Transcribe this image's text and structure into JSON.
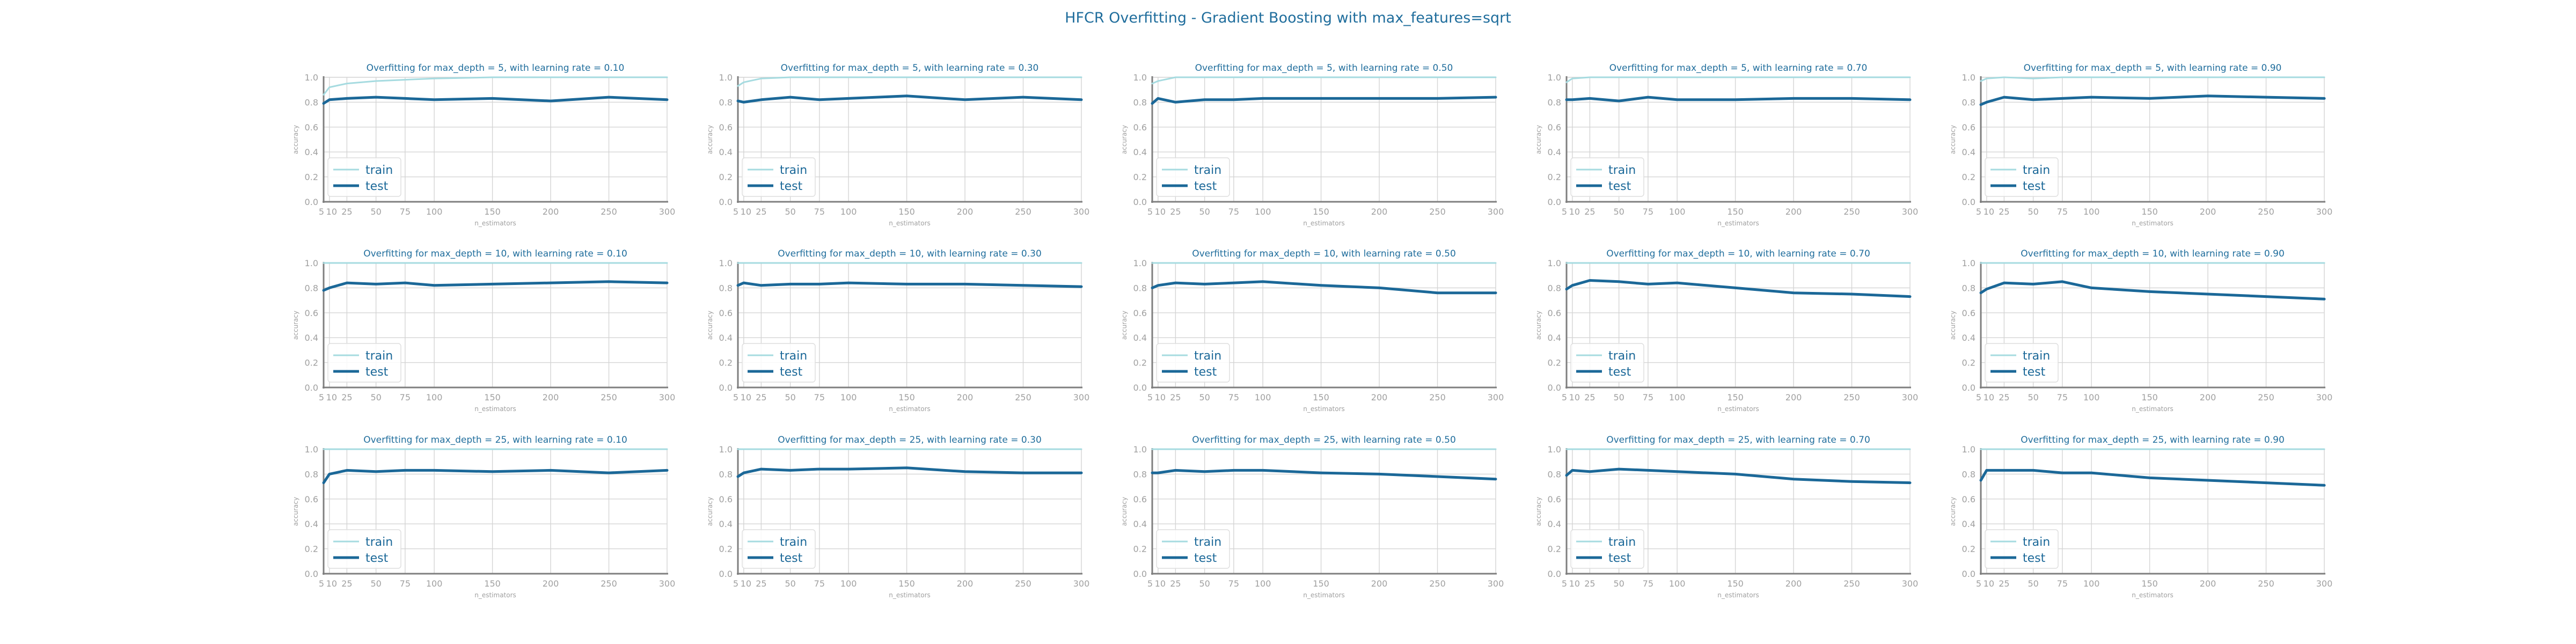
{
  "suptitle": "HFCR Overfitting - Gradient Boosting with max_features=sqrt",
  "colors": {
    "train": "#a6dbe0",
    "test": "#1b6898",
    "title_text": "#1f6d9c",
    "axis_text": "#a0a0a0",
    "grid": "#d4d4d4",
    "axis_line": "#7f7f7f"
  },
  "chart_data": [
    {
      "type": "line",
      "title": "Overfitting for max_depth = 5, with learning rate = 0.10",
      "xlabel": "n_estimators",
      "ylabel": "accuracy",
      "x": [
        5,
        10,
        25,
        50,
        75,
        100,
        150,
        200,
        250,
        300
      ],
      "xticks": [
        "5",
        "10",
        "25",
        "50",
        "75",
        "100",
        "150",
        "200",
        "250",
        "300"
      ],
      "yticks": [
        "0.0",
        "0.2",
        "0.4",
        "0.6",
        "0.8",
        "1.0"
      ],
      "ylim": [
        0,
        1
      ],
      "xlim": [
        5,
        300
      ],
      "grid": true,
      "legend_position": "lower-left",
      "series": [
        {
          "name": "train",
          "values": [
            0.86,
            0.92,
            0.95,
            0.97,
            0.98,
            0.99,
            1.0,
            1.0,
            1.0,
            1.0
          ]
        },
        {
          "name": "test",
          "values": [
            0.79,
            0.82,
            0.83,
            0.84,
            0.83,
            0.82,
            0.83,
            0.81,
            0.84,
            0.82
          ]
        }
      ]
    },
    {
      "type": "line",
      "title": "Overfitting for max_depth = 5, with learning rate = 0.30",
      "xlabel": "n_estimators",
      "ylabel": "accuracy",
      "x": [
        5,
        10,
        25,
        50,
        75,
        100,
        150,
        200,
        250,
        300
      ],
      "xticks": [
        "5",
        "10",
        "25",
        "50",
        "75",
        "100",
        "150",
        "200",
        "250",
        "300"
      ],
      "yticks": [
        "0.0",
        "0.2",
        "0.4",
        "0.6",
        "0.8",
        "1.0"
      ],
      "ylim": [
        0,
        1
      ],
      "xlim": [
        5,
        300
      ],
      "grid": true,
      "legend_position": "lower-left",
      "series": [
        {
          "name": "train",
          "values": [
            0.93,
            0.96,
            0.99,
            1.0,
            1.0,
            1.0,
            1.0,
            1.0,
            1.0,
            1.0
          ]
        },
        {
          "name": "test",
          "values": [
            0.81,
            0.8,
            0.82,
            0.84,
            0.82,
            0.83,
            0.85,
            0.82,
            0.84,
            0.82
          ]
        }
      ]
    },
    {
      "type": "line",
      "title": "Overfitting for max_depth = 5, with learning rate = 0.50",
      "xlabel": "n_estimators",
      "ylabel": "accuracy",
      "x": [
        5,
        10,
        25,
        50,
        75,
        100,
        150,
        200,
        250,
        300
      ],
      "xticks": [
        "5",
        "10",
        "25",
        "50",
        "75",
        "100",
        "150",
        "200",
        "250",
        "300"
      ],
      "yticks": [
        "0.0",
        "0.2",
        "0.4",
        "0.6",
        "0.8",
        "1.0"
      ],
      "ylim": [
        0,
        1
      ],
      "xlim": [
        5,
        300
      ],
      "grid": true,
      "legend_position": "lower-left",
      "series": [
        {
          "name": "train",
          "values": [
            0.95,
            0.97,
            1.0,
            1.0,
            1.0,
            1.0,
            1.0,
            1.0,
            1.0,
            1.0
          ]
        },
        {
          "name": "test",
          "values": [
            0.79,
            0.83,
            0.8,
            0.82,
            0.82,
            0.83,
            0.83,
            0.83,
            0.83,
            0.84
          ]
        }
      ]
    },
    {
      "type": "line",
      "title": "Overfitting for max_depth = 5, with learning rate = 0.70",
      "xlabel": "n_estimators",
      "ylabel": "accuracy",
      "x": [
        5,
        10,
        25,
        50,
        75,
        100,
        150,
        200,
        250,
        300
      ],
      "xticks": [
        "5",
        "10",
        "25",
        "50",
        "75",
        "100",
        "150",
        "200",
        "250",
        "300"
      ],
      "yticks": [
        "0.0",
        "0.2",
        "0.4",
        "0.6",
        "0.8",
        "1.0"
      ],
      "ylim": [
        0,
        1
      ],
      "xlim": [
        5,
        300
      ],
      "grid": true,
      "legend_position": "lower-left",
      "series": [
        {
          "name": "train",
          "values": [
            0.96,
            0.99,
            1.0,
            1.0,
            1.0,
            1.0,
            1.0,
            1.0,
            1.0,
            1.0
          ]
        },
        {
          "name": "test",
          "values": [
            0.82,
            0.82,
            0.83,
            0.81,
            0.84,
            0.82,
            0.82,
            0.83,
            0.83,
            0.82
          ]
        }
      ]
    },
    {
      "type": "line",
      "title": "Overfitting for max_depth = 5, with learning rate = 0.90",
      "xlabel": "n_estimators",
      "ylabel": "accuracy",
      "x": [
        5,
        10,
        25,
        50,
        75,
        100,
        150,
        200,
        250,
        300
      ],
      "xticks": [
        "5",
        "10",
        "25",
        "50",
        "75",
        "100",
        "150",
        "200",
        "250",
        "300"
      ],
      "yticks": [
        "0.0",
        "0.2",
        "0.4",
        "0.6",
        "0.8",
        "1.0"
      ],
      "ylim": [
        0,
        1
      ],
      "xlim": [
        5,
        300
      ],
      "grid": true,
      "legend_position": "lower-left",
      "series": [
        {
          "name": "train",
          "values": [
            0.97,
            0.99,
            1.0,
            0.99,
            1.0,
            1.0,
            1.0,
            1.0,
            1.0,
            1.0
          ]
        },
        {
          "name": "test",
          "values": [
            0.78,
            0.8,
            0.84,
            0.82,
            0.83,
            0.84,
            0.83,
            0.85,
            0.84,
            0.83
          ]
        }
      ]
    },
    {
      "type": "line",
      "title": "Overfitting for max_depth = 10, with learning rate = 0.10",
      "xlabel": "n_estimators",
      "ylabel": "accuracy",
      "x": [
        5,
        10,
        25,
        50,
        75,
        100,
        150,
        200,
        250,
        300
      ],
      "xticks": [
        "5",
        "10",
        "25",
        "50",
        "75",
        "100",
        "150",
        "200",
        "250",
        "300"
      ],
      "yticks": [
        "0.0",
        "0.2",
        "0.4",
        "0.6",
        "0.8",
        "1.0"
      ],
      "ylim": [
        0,
        1
      ],
      "xlim": [
        5,
        300
      ],
      "grid": true,
      "legend_position": "lower-left",
      "series": [
        {
          "name": "train",
          "values": [
            1.0,
            1.0,
            1.0,
            1.0,
            1.0,
            1.0,
            1.0,
            1.0,
            1.0,
            1.0
          ]
        },
        {
          "name": "test",
          "values": [
            0.78,
            0.8,
            0.84,
            0.83,
            0.84,
            0.82,
            0.83,
            0.84,
            0.85,
            0.84
          ]
        }
      ]
    },
    {
      "type": "line",
      "title": "Overfitting for max_depth = 10, with learning rate = 0.30",
      "xlabel": "n_estimators",
      "ylabel": "accuracy",
      "x": [
        5,
        10,
        25,
        50,
        75,
        100,
        150,
        200,
        250,
        300
      ],
      "xticks": [
        "5",
        "10",
        "25",
        "50",
        "75",
        "100",
        "150",
        "200",
        "250",
        "300"
      ],
      "yticks": [
        "0.0",
        "0.2",
        "0.4",
        "0.6",
        "0.8",
        "1.0"
      ],
      "ylim": [
        0,
        1
      ],
      "xlim": [
        5,
        300
      ],
      "grid": true,
      "legend_position": "lower-left",
      "series": [
        {
          "name": "train",
          "values": [
            1.0,
            1.0,
            1.0,
            1.0,
            1.0,
            1.0,
            1.0,
            1.0,
            1.0,
            1.0
          ]
        },
        {
          "name": "test",
          "values": [
            0.82,
            0.84,
            0.82,
            0.83,
            0.83,
            0.84,
            0.83,
            0.83,
            0.82,
            0.81
          ]
        }
      ]
    },
    {
      "type": "line",
      "title": "Overfitting for max_depth = 10, with learning rate = 0.50",
      "xlabel": "n_estimators",
      "ylabel": "accuracy",
      "x": [
        5,
        10,
        25,
        50,
        75,
        100,
        150,
        200,
        250,
        300
      ],
      "xticks": [
        "5",
        "10",
        "25",
        "50",
        "75",
        "100",
        "150",
        "200",
        "250",
        "300"
      ],
      "yticks": [
        "0.0",
        "0.2",
        "0.4",
        "0.6",
        "0.8",
        "1.0"
      ],
      "ylim": [
        0,
        1
      ],
      "xlim": [
        5,
        300
      ],
      "grid": true,
      "legend_position": "lower-left",
      "series": [
        {
          "name": "train",
          "values": [
            1.0,
            1.0,
            1.0,
            1.0,
            1.0,
            1.0,
            1.0,
            1.0,
            1.0,
            1.0
          ]
        },
        {
          "name": "test",
          "values": [
            0.8,
            0.82,
            0.84,
            0.83,
            0.84,
            0.85,
            0.82,
            0.8,
            0.76,
            0.76
          ]
        }
      ]
    },
    {
      "type": "line",
      "title": "Overfitting for max_depth = 10, with learning rate = 0.70",
      "xlabel": "n_estimators",
      "ylabel": "accuracy",
      "x": [
        5,
        10,
        25,
        50,
        75,
        100,
        150,
        200,
        250,
        300
      ],
      "xticks": [
        "5",
        "10",
        "25",
        "50",
        "75",
        "100",
        "150",
        "200",
        "250",
        "300"
      ],
      "yticks": [
        "0.0",
        "0.2",
        "0.4",
        "0.6",
        "0.8",
        "1.0"
      ],
      "ylim": [
        0,
        1
      ],
      "xlim": [
        5,
        300
      ],
      "grid": true,
      "legend_position": "lower-left",
      "series": [
        {
          "name": "train",
          "values": [
            1.0,
            1.0,
            1.0,
            1.0,
            1.0,
            1.0,
            1.0,
            1.0,
            1.0,
            1.0
          ]
        },
        {
          "name": "test",
          "values": [
            0.79,
            0.82,
            0.86,
            0.85,
            0.83,
            0.84,
            0.8,
            0.76,
            0.75,
            0.73
          ]
        }
      ]
    },
    {
      "type": "line",
      "title": "Overfitting for max_depth = 10, with learning rate = 0.90",
      "xlabel": "n_estimators",
      "ylabel": "accuracy",
      "x": [
        5,
        10,
        25,
        50,
        75,
        100,
        150,
        200,
        250,
        300
      ],
      "xticks": [
        "5",
        "10",
        "25",
        "50",
        "75",
        "100",
        "150",
        "200",
        "250",
        "300"
      ],
      "yticks": [
        "0.0",
        "0.2",
        "0.4",
        "0.6",
        "0.8",
        "1.0"
      ],
      "ylim": [
        0,
        1
      ],
      "xlim": [
        5,
        300
      ],
      "grid": true,
      "legend_position": "lower-left",
      "series": [
        {
          "name": "train",
          "values": [
            1.0,
            1.0,
            1.0,
            1.0,
            1.0,
            1.0,
            1.0,
            1.0,
            1.0,
            1.0
          ]
        },
        {
          "name": "test",
          "values": [
            0.76,
            0.79,
            0.84,
            0.83,
            0.85,
            0.8,
            0.77,
            0.75,
            0.73,
            0.71
          ]
        }
      ]
    },
    {
      "type": "line",
      "title": "Overfitting for max_depth = 25, with learning rate = 0.10",
      "xlabel": "n_estimators",
      "ylabel": "accuracy",
      "x": [
        5,
        10,
        25,
        50,
        75,
        100,
        150,
        200,
        250,
        300
      ],
      "xticks": [
        "5",
        "10",
        "25",
        "50",
        "75",
        "100",
        "150",
        "200",
        "250",
        "300"
      ],
      "yticks": [
        "0.0",
        "0.2",
        "0.4",
        "0.6",
        "0.8",
        "1.0"
      ],
      "ylim": [
        0,
        1
      ],
      "xlim": [
        5,
        300
      ],
      "grid": true,
      "legend_position": "lower-left",
      "series": [
        {
          "name": "train",
          "values": [
            1.0,
            1.0,
            1.0,
            1.0,
            1.0,
            1.0,
            1.0,
            1.0,
            1.0,
            1.0
          ]
        },
        {
          "name": "test",
          "values": [
            0.73,
            0.8,
            0.83,
            0.82,
            0.83,
            0.83,
            0.82,
            0.83,
            0.81,
            0.83
          ]
        }
      ]
    },
    {
      "type": "line",
      "title": "Overfitting for max_depth = 25, with learning rate = 0.30",
      "xlabel": "n_estimators",
      "ylabel": "accuracy",
      "x": [
        5,
        10,
        25,
        50,
        75,
        100,
        150,
        200,
        250,
        300
      ],
      "xticks": [
        "5",
        "10",
        "25",
        "50",
        "75",
        "100",
        "150",
        "200",
        "250",
        "300"
      ],
      "yticks": [
        "0.0",
        "0.2",
        "0.4",
        "0.6",
        "0.8",
        "1.0"
      ],
      "ylim": [
        0,
        1
      ],
      "xlim": [
        5,
        300
      ],
      "grid": true,
      "legend_position": "lower-left",
      "series": [
        {
          "name": "train",
          "values": [
            1.0,
            1.0,
            1.0,
            1.0,
            1.0,
            1.0,
            1.0,
            1.0,
            1.0,
            1.0
          ]
        },
        {
          "name": "test",
          "values": [
            0.78,
            0.81,
            0.84,
            0.83,
            0.84,
            0.84,
            0.85,
            0.82,
            0.81,
            0.81
          ]
        }
      ]
    },
    {
      "type": "line",
      "title": "Overfitting for max_depth = 25, with learning rate = 0.50",
      "xlabel": "n_estimators",
      "ylabel": "accuracy",
      "x": [
        5,
        10,
        25,
        50,
        75,
        100,
        150,
        200,
        250,
        300
      ],
      "xticks": [
        "5",
        "10",
        "25",
        "50",
        "75",
        "100",
        "150",
        "200",
        "250",
        "300"
      ],
      "yticks": [
        "0.0",
        "0.2",
        "0.4",
        "0.6",
        "0.8",
        "1.0"
      ],
      "ylim": [
        0,
        1
      ],
      "xlim": [
        5,
        300
      ],
      "grid": true,
      "legend_position": "lower-left",
      "series": [
        {
          "name": "train",
          "values": [
            1.0,
            1.0,
            1.0,
            1.0,
            1.0,
            1.0,
            1.0,
            1.0,
            1.0,
            1.0
          ]
        },
        {
          "name": "test",
          "values": [
            0.81,
            0.81,
            0.83,
            0.82,
            0.83,
            0.83,
            0.81,
            0.8,
            0.78,
            0.76
          ]
        }
      ]
    },
    {
      "type": "line",
      "title": "Overfitting for max_depth = 25, with learning rate = 0.70",
      "xlabel": "n_estimators",
      "ylabel": "accuracy",
      "x": [
        5,
        10,
        25,
        50,
        75,
        100,
        150,
        200,
        250,
        300
      ],
      "xticks": [
        "5",
        "10",
        "25",
        "50",
        "75",
        "100",
        "150",
        "200",
        "250",
        "300"
      ],
      "yticks": [
        "0.0",
        "0.2",
        "0.4",
        "0.6",
        "0.8",
        "1.0"
      ],
      "ylim": [
        0,
        1
      ],
      "xlim": [
        5,
        300
      ],
      "grid": true,
      "legend_position": "lower-left",
      "series": [
        {
          "name": "train",
          "values": [
            1.0,
            1.0,
            1.0,
            1.0,
            1.0,
            1.0,
            1.0,
            1.0,
            1.0,
            1.0
          ]
        },
        {
          "name": "test",
          "values": [
            0.79,
            0.83,
            0.82,
            0.84,
            0.83,
            0.82,
            0.8,
            0.76,
            0.74,
            0.73
          ]
        }
      ]
    },
    {
      "type": "line",
      "title": "Overfitting for max_depth = 25, with learning rate = 0.90",
      "xlabel": "n_estimators",
      "ylabel": "accuracy",
      "x": [
        5,
        10,
        25,
        50,
        75,
        100,
        150,
        200,
        250,
        300
      ],
      "xticks": [
        "5",
        "10",
        "25",
        "50",
        "75",
        "100",
        "150",
        "200",
        "250",
        "300"
      ],
      "yticks": [
        "0.0",
        "0.2",
        "0.4",
        "0.6",
        "0.8",
        "1.0"
      ],
      "ylim": [
        0,
        1
      ],
      "xlim": [
        5,
        300
      ],
      "grid": true,
      "legend_position": "lower-left",
      "series": [
        {
          "name": "train",
          "values": [
            1.0,
            1.0,
            1.0,
            1.0,
            1.0,
            1.0,
            1.0,
            1.0,
            1.0,
            1.0
          ]
        },
        {
          "name": "test",
          "values": [
            0.75,
            0.83,
            0.83,
            0.83,
            0.81,
            0.81,
            0.77,
            0.75,
            0.73,
            0.71
          ]
        }
      ]
    }
  ]
}
